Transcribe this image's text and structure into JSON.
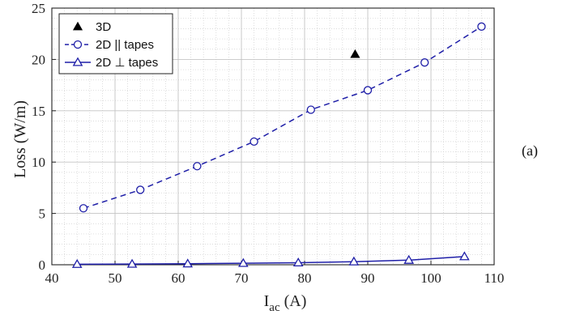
{
  "panel_label": "(a)",
  "chart_data": {
    "type": "line",
    "xlabel": "I",
    "xlabel_sub": "ac",
    "xlabel_unit": " (A)",
    "ylabel": "Loss (W/m)",
    "xlim": [
      40,
      110
    ],
    "ylim": [
      0,
      25
    ],
    "xticks": [
      40,
      50,
      60,
      70,
      80,
      90,
      100,
      110
    ],
    "yticks": [
      0,
      5,
      10,
      15,
      20,
      25
    ],
    "grid": true,
    "minor_grid": true,
    "legend_position": "top-left",
    "series": [
      {
        "name": "3D",
        "marker": "filled-triangle",
        "line": "none",
        "color": "#000000",
        "x": [
          88
        ],
        "y": [
          20.5
        ]
      },
      {
        "name": "2D || tapes",
        "marker": "circle",
        "line": "dashed",
        "color": "#1f1fa8",
        "x": [
          45,
          54,
          63,
          72,
          81,
          90,
          99,
          108
        ],
        "y": [
          5.5,
          7.3,
          9.6,
          12.0,
          15.1,
          17.0,
          19.7,
          23.2
        ]
      },
      {
        "name": "2D ⊥ tapes",
        "marker": "triangle",
        "line": "solid",
        "color": "#1f1fa8",
        "x": [
          44,
          52.7,
          61.5,
          70.3,
          79,
          87.8,
          96.5,
          105.3
        ],
        "y": [
          0.05,
          0.07,
          0.1,
          0.15,
          0.2,
          0.3,
          0.45,
          0.8
        ]
      }
    ]
  }
}
